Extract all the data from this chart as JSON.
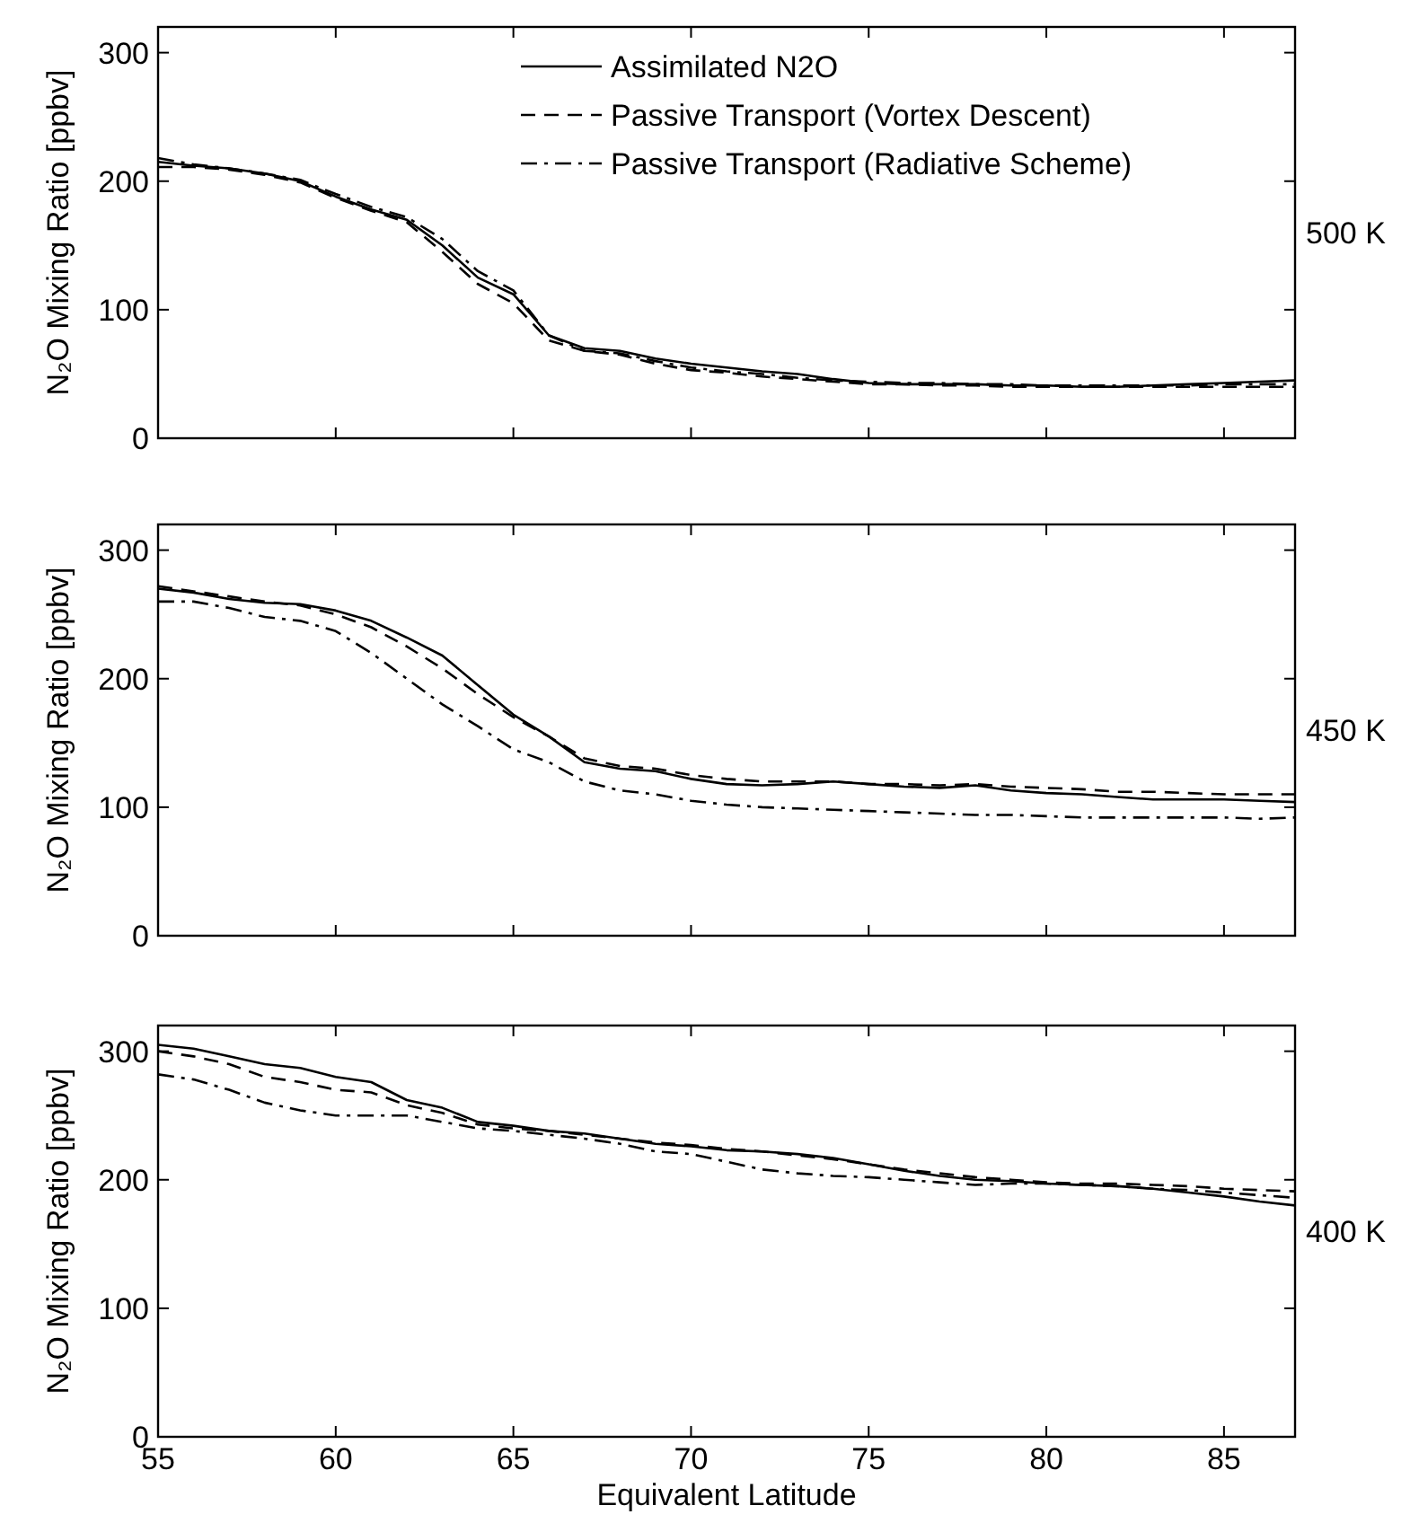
{
  "chart_data": [
    {
      "type": "line",
      "x": [
        55,
        56,
        57,
        58,
        59,
        60,
        61,
        62,
        63,
        64,
        65,
        66,
        67,
        68,
        69,
        70,
        71,
        72,
        73,
        74,
        75,
        76,
        77,
        78,
        79,
        80,
        81,
        82,
        83,
        84,
        85,
        86,
        87
      ],
      "xlim": [
        55,
        87
      ],
      "xticks": [
        55,
        60,
        65,
        70,
        75,
        80,
        85
      ],
      "ylim": [
        0,
        320
      ],
      "yticks": [
        0,
        100,
        200,
        300
      ],
      "ylabel": "N₂O Mixing Ratio  [ppbv]",
      "tick_labels": "y",
      "legend": "top",
      "annotations": [
        "500 K"
      ],
      "series": [
        {
          "name": "Assimilated N2O",
          "color": "#000000",
          "line_style": "solid",
          "values": [
            215,
            212,
            210,
            206,
            200,
            188,
            178,
            170,
            150,
            125,
            112,
            80,
            70,
            68,
            62,
            58,
            55,
            52,
            50,
            46,
            43,
            42,
            42,
            42,
            41,
            41,
            40,
            40,
            41,
            42,
            43,
            44,
            45
          ]
        },
        {
          "name": "Passive Transport (Vortex Descent)",
          "color": "#000000",
          "line_style": "dashed",
          "values": [
            211,
            211,
            209,
            205,
            199,
            187,
            177,
            168,
            145,
            120,
            105,
            76,
            68,
            65,
            58,
            53,
            51,
            48,
            46,
            44,
            42,
            42,
            41,
            41,
            40,
            40,
            40,
            40,
            40,
            40,
            40,
            40,
            40
          ]
        },
        {
          "name": "Passive Transport (Radiative Scheme)",
          "color": "#000000",
          "line_style": "dashdot",
          "values": [
            218,
            213,
            210,
            206,
            201,
            190,
            180,
            172,
            155,
            130,
            115,
            80,
            68,
            66,
            60,
            55,
            52,
            50,
            47,
            45,
            44,
            43,
            43,
            42,
            42,
            41,
            41,
            41,
            41,
            41,
            42,
            42,
            42
          ]
        }
      ]
    },
    {
      "type": "line",
      "x": [
        55,
        56,
        57,
        58,
        59,
        60,
        61,
        62,
        63,
        64,
        65,
        66,
        67,
        68,
        69,
        70,
        71,
        72,
        73,
        74,
        75,
        76,
        77,
        78,
        79,
        80,
        81,
        82,
        83,
        84,
        85,
        86,
        87
      ],
      "xlim": [
        55,
        87
      ],
      "xticks": [
        55,
        60,
        65,
        70,
        75,
        80,
        85
      ],
      "ylim": [
        0,
        320
      ],
      "yticks": [
        0,
        100,
        200,
        300
      ],
      "ylabel": "N₂O Mixing Ratio  [ppbv]",
      "tick_labels": "y",
      "annotations": [
        "450 K"
      ],
      "series": [
        {
          "color": "#000000",
          "line_style": "solid",
          "values": [
            270,
            267,
            262,
            259,
            258,
            253,
            245,
            232,
            218,
            195,
            172,
            155,
            135,
            130,
            128,
            122,
            118,
            117,
            118,
            120,
            118,
            116,
            115,
            117,
            113,
            111,
            110,
            108,
            106,
            106,
            106,
            105,
            104
          ]
        },
        {
          "color": "#000000",
          "line_style": "dashed",
          "values": [
            272,
            268,
            264,
            260,
            257,
            250,
            240,
            225,
            208,
            188,
            170,
            155,
            138,
            132,
            130,
            125,
            122,
            120,
            120,
            120,
            118,
            118,
            117,
            118,
            116,
            115,
            114,
            112,
            112,
            111,
            110,
            110,
            110
          ]
        },
        {
          "color": "#000000",
          "line_style": "dashdot",
          "values": [
            260,
            260,
            255,
            248,
            245,
            237,
            220,
            200,
            180,
            163,
            145,
            135,
            120,
            113,
            110,
            105,
            102,
            100,
            99,
            98,
            97,
            96,
            95,
            94,
            94,
            93,
            92,
            92,
            92,
            92,
            92,
            91,
            92
          ]
        }
      ]
    },
    {
      "type": "line",
      "x": [
        55,
        56,
        57,
        58,
        59,
        60,
        61,
        62,
        63,
        64,
        65,
        66,
        67,
        68,
        69,
        70,
        71,
        72,
        73,
        74,
        75,
        76,
        77,
        78,
        79,
        80,
        81,
        82,
        83,
        84,
        85,
        86,
        87
      ],
      "xlim": [
        55,
        87
      ],
      "xticks": [
        55,
        60,
        65,
        70,
        75,
        80,
        85
      ],
      "ylim": [
        0,
        320
      ],
      "yticks": [
        0,
        100,
        200,
        300
      ],
      "xlabel": "Equivalent Latitude",
      "ylabel": "N₂O Mixing Ratio  [ppbv]",
      "annotations": [
        "400 K"
      ],
      "series": [
        {
          "color": "#000000",
          "line_style": "solid",
          "values": [
            305,
            302,
            296,
            290,
            287,
            280,
            276,
            262,
            256,
            245,
            242,
            238,
            236,
            232,
            228,
            226,
            223,
            222,
            220,
            217,
            212,
            207,
            203,
            200,
            199,
            197,
            196,
            195,
            193,
            190,
            187,
            183,
            180
          ]
        },
        {
          "color": "#000000",
          "line_style": "dashed",
          "values": [
            300,
            296,
            290,
            280,
            276,
            270,
            268,
            258,
            252,
            243,
            240,
            238,
            235,
            232,
            229,
            227,
            224,
            222,
            219,
            216,
            212,
            208,
            205,
            202,
            200,
            198,
            197,
            197,
            196,
            195,
            193,
            192,
            191
          ]
        },
        {
          "color": "#000000",
          "line_style": "dashdot",
          "values": [
            282,
            278,
            270,
            260,
            254,
            250,
            250,
            250,
            245,
            240,
            238,
            235,
            232,
            228,
            222,
            220,
            214,
            208,
            205,
            203,
            202,
            200,
            198,
            196,
            197,
            197,
            196,
            195,
            193,
            192,
            190,
            188,
            186
          ]
        }
      ]
    }
  ]
}
